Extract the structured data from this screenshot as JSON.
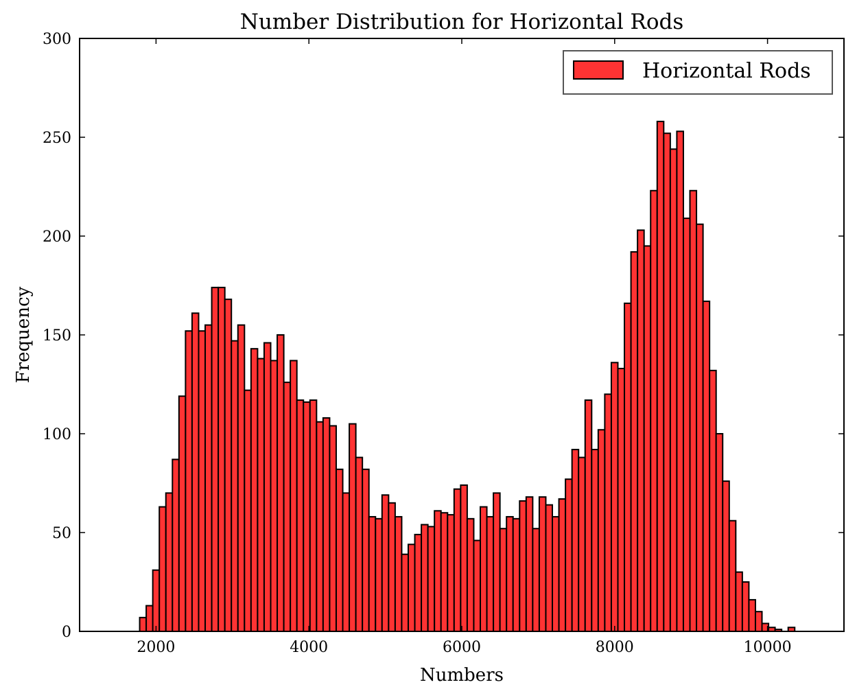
{
  "chart_data": {
    "type": "bar",
    "title": "Number Distribution for Horizontal Rods",
    "xlabel": "Numbers",
    "ylabel": "Frequency",
    "xlim": [
      1000,
      11000
    ],
    "ylim": [
      0,
      300
    ],
    "xticks": [
      2000,
      4000,
      6000,
      8000,
      10000
    ],
    "yticks": [
      0,
      50,
      100,
      150,
      200,
      250,
      300
    ],
    "legend": "top-right",
    "grid": false,
    "bar_color": "#ff3333",
    "edge_color": "#000000",
    "bin_start": 1786,
    "bin_width": 85.7,
    "series": [
      {
        "name": "Horizontal Rods",
        "values": [
          7,
          13,
          31,
          63,
          70,
          87,
          119,
          152,
          161,
          152,
          155,
          174,
          174,
          168,
          147,
          155,
          122,
          143,
          138,
          146,
          137,
          150,
          126,
          137,
          117,
          116,
          117,
          106,
          108,
          104,
          82,
          70,
          105,
          88,
          82,
          58,
          57,
          69,
          65,
          58,
          39,
          44,
          49,
          54,
          53,
          61,
          60,
          59,
          72,
          74,
          57,
          46,
          63,
          58,
          70,
          52,
          58,
          57,
          66,
          68,
          52,
          68,
          64,
          58,
          67,
          77,
          92,
          88,
          117,
          92,
          102,
          120,
          136,
          133,
          166,
          192,
          203,
          195,
          223,
          258,
          252,
          244,
          253,
          209,
          223,
          206,
          167,
          132,
          100,
          76,
          56,
          30,
          25,
          16,
          10,
          4,
          2,
          1,
          0,
          2
        ]
      }
    ]
  }
}
